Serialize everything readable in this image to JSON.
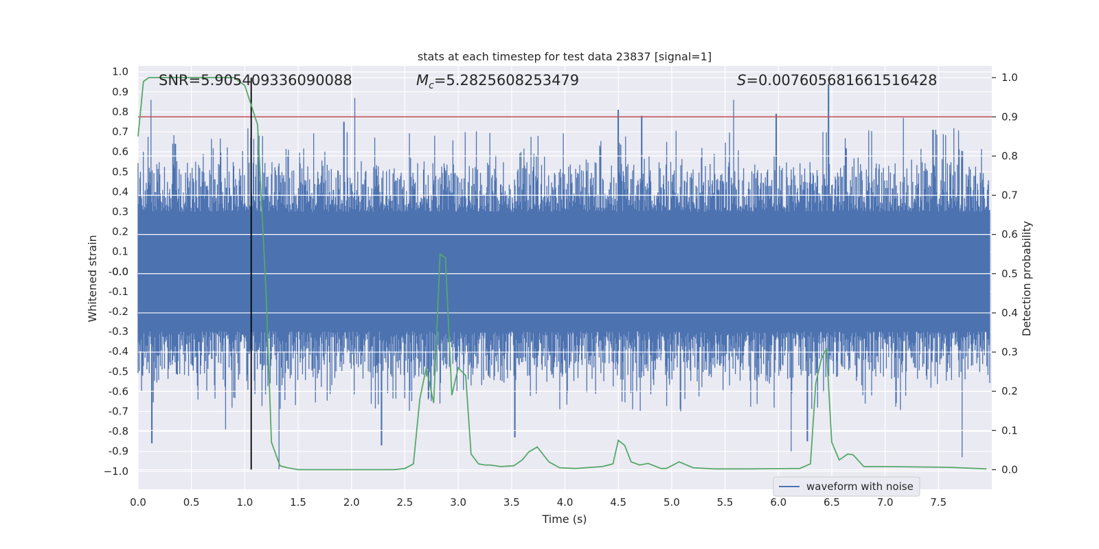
{
  "chart_data": {
    "type": "line",
    "title": "stats at each timestep for test data 23837 [signal=1]",
    "xlabel": "Time (s)",
    "ylabel_left": "Whitened strain",
    "ylabel_right": "Detection probability",
    "xlim": [
      0.0,
      8.0
    ],
    "ylim_left": [
      -1.09,
      1.03
    ],
    "ylim_right": [
      -0.05,
      1.03
    ],
    "x_ticks": [
      "0.0",
      "0.5",
      "1.0",
      "1.5",
      "2.0",
      "2.5",
      "3.0",
      "3.5",
      "4.0",
      "4.5",
      "5.0",
      "5.5",
      "6.0",
      "6.5",
      "7.0",
      "7.5"
    ],
    "x_tick_values": [
      0,
      0.5,
      1,
      1.5,
      2,
      2.5,
      3,
      3.5,
      4,
      4.5,
      5,
      5.5,
      6,
      6.5,
      7,
      7.5
    ],
    "y_left_ticks": [
      "1.0",
      "0.9",
      "0.8",
      "0.7",
      "0.6",
      "0.5",
      "0.4",
      "0.3",
      "0.2",
      "0.1",
      "0.0",
      "-0.0",
      "-0.1",
      "-0.2",
      "-0.3",
      "-0.4",
      "-0.5",
      "-0.6",
      "-0.7",
      "-0.8",
      "-0.9",
      "−1.0"
    ],
    "y_left_tick_values": [
      1.0,
      0.9,
      0.8,
      0.7,
      0.6,
      0.5,
      0.4,
      0.3,
      0.2,
      0.1,
      0.0,
      -0.0,
      -0.1,
      -0.2,
      -0.3,
      -0.4,
      -0.5,
      -0.6,
      -0.7,
      -0.8,
      -0.9,
      -1.0
    ],
    "y_right_ticks": [
      "1.0",
      "0.9",
      "0.8",
      "0.7",
      "0.6",
      "0.5",
      "0.4",
      "0.3",
      "0.2",
      "0.1",
      "0.0"
    ],
    "y_right_tick_values": [
      1.0,
      0.9,
      0.8,
      0.7,
      0.6,
      0.5,
      0.4,
      0.3,
      0.2,
      0.1,
      0.0
    ],
    "annotations": {
      "snr": "SNR=5.905409336090088",
      "mc_symbol": "M",
      "mc_sub": "c",
      "mc_value": "=5.2825608253479",
      "s_symbol": "S",
      "s_value": "=0.007605681661516428"
    },
    "legend": [
      {
        "label": "waveform with noise",
        "color": "#4c72b0"
      }
    ],
    "threshold": {
      "value": 0.9,
      "color": "#c44e52"
    },
    "marker_time": 1.06,
    "waveform": {
      "name": "waveform with noise",
      "color": "#4c72b0",
      "core_band": [
        -0.21,
        0.21
      ],
      "typical_upper": [
        0.3,
        0.55
      ],
      "typical_lower": [
        -0.3,
        -0.55
      ],
      "peaks": [
        {
          "t": 0.12,
          "v": 0.86
        },
        {
          "t": 0.05,
          "v": 0.6
        },
        {
          "t": 0.35,
          "v": 0.64
        },
        {
          "t": 1.13,
          "v": 0.68
        },
        {
          "t": 2.03,
          "v": 0.87
        },
        {
          "t": 1.93,
          "v": 0.75
        },
        {
          "t": 2.78,
          "v": 0.68
        },
        {
          "t": 4.5,
          "v": 0.81
        },
        {
          "t": 4.72,
          "v": 0.78
        },
        {
          "t": 5.58,
          "v": 0.86
        },
        {
          "t": 5.98,
          "v": 0.79
        },
        {
          "t": 6.47,
          "v": 0.94
        },
        {
          "t": 7.17,
          "v": 0.77
        },
        {
          "t": 7.45,
          "v": 0.71
        }
      ],
      "troughs": [
        {
          "t": 0.13,
          "v": -0.86
        },
        {
          "t": 0.82,
          "v": -0.79
        },
        {
          "t": 1.32,
          "v": -0.99
        },
        {
          "t": 2.28,
          "v": -0.87
        },
        {
          "t": 3.53,
          "v": -0.83
        },
        {
          "t": 6.12,
          "v": -0.9
        },
        {
          "t": 6.27,
          "v": -0.85
        },
        {
          "t": 7.72,
          "v": -0.93
        }
      ]
    },
    "detection_probability": {
      "name": "Detection probability",
      "color": "#55a868",
      "x": [
        0.0,
        0.05,
        0.1,
        0.2,
        0.5,
        0.9,
        1.0,
        1.06,
        1.12,
        1.2,
        1.25,
        1.33,
        1.4,
        1.5,
        2.0,
        2.4,
        2.5,
        2.58,
        2.64,
        2.7,
        2.77,
        2.83,
        2.88,
        2.94,
        3.0,
        3.07,
        3.12,
        3.19,
        3.25,
        3.3,
        3.4,
        3.52,
        3.6,
        3.66,
        3.74,
        3.85,
        3.95,
        4.1,
        4.35,
        4.45,
        4.5,
        4.56,
        4.62,
        4.7,
        4.78,
        4.9,
        4.95,
        5.07,
        5.2,
        5.4,
        5.7,
        6.2,
        6.3,
        6.35,
        6.4,
        6.45,
        6.5,
        6.57,
        6.65,
        6.7,
        6.8,
        7.0,
        7.3,
        7.6,
        7.95
      ],
      "y": [
        0.85,
        0.99,
        1.0,
        1.0,
        1.0,
        1.0,
        0.98,
        0.93,
        0.88,
        0.45,
        0.07,
        0.01,
        0.005,
        0.0,
        0.0,
        0.0,
        0.003,
        0.015,
        0.18,
        0.26,
        0.17,
        0.55,
        0.54,
        0.19,
        0.26,
        0.24,
        0.04,
        0.015,
        0.012,
        0.012,
        0.008,
        0.01,
        0.025,
        0.045,
        0.058,
        0.02,
        0.005,
        0.003,
        0.008,
        0.015,
        0.075,
        0.062,
        0.02,
        0.012,
        0.016,
        0.003,
        0.003,
        0.02,
        0.005,
        0.002,
        0.002,
        0.003,
        0.015,
        0.22,
        0.28,
        0.31,
        0.07,
        0.025,
        0.04,
        0.038,
        0.008,
        0.008,
        0.007,
        0.006,
        0.002
      ]
    }
  }
}
